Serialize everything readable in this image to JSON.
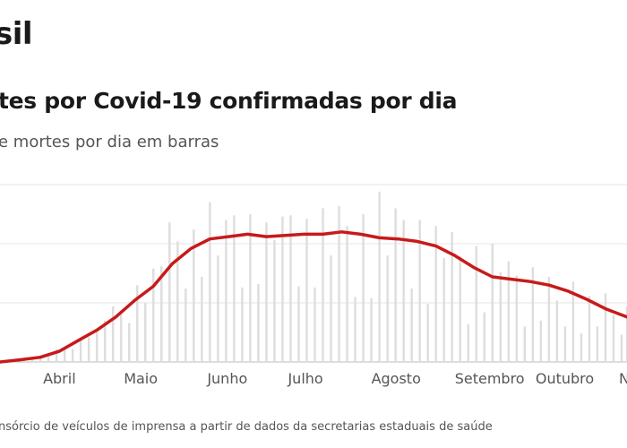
{
  "header": {
    "title": "sil",
    "subtitle": "tes por Covid-19 confirmadas por dia",
    "caption": "e mortes por dia em barras",
    "source": "nsórcio de veículos de imprensa a partir de dados da secretarias estaduais de saúde"
  },
  "chart_data": {
    "type": "bar",
    "title": "tes por Covid-19 confirmadas por dia",
    "subtitle": "e mortes por dia em barras",
    "x_range": [
      "2020-03-17",
      "2020-11-05"
    ],
    "y_range": [
      0,
      1500
    ],
    "grid": true,
    "colors": {
      "bars": "#dddddd",
      "line": "#c71a1a",
      "grid": "#e6e6e6"
    },
    "month_ticks": [
      {
        "label": "Abril",
        "date": "2020-04-01"
      },
      {
        "label": "Maio",
        "date": "2020-05-01"
      },
      {
        "label": "Junho",
        "date": "2020-06-01"
      },
      {
        "label": "Julho",
        "date": "2020-07-01"
      },
      {
        "label": "Agosto",
        "date": "2020-08-01"
      },
      {
        "label": "Setembro",
        "date": "2020-09-01"
      },
      {
        "label": "Outubro",
        "date": "2020-10-01"
      },
      {
        "label": "No",
        "date": "2020-11-01"
      }
    ],
    "series": [
      {
        "type": "line",
        "points": [
          [
            "2020-03-17",
            0
          ],
          [
            "2020-03-25",
            20
          ],
          [
            "2020-04-01",
            40
          ],
          [
            "2020-04-08",
            90
          ],
          [
            "2020-04-15",
            180
          ],
          [
            "2020-04-22",
            270
          ],
          [
            "2020-04-29",
            380
          ],
          [
            "2020-05-06",
            520
          ],
          [
            "2020-05-13",
            640
          ],
          [
            "2020-05-20",
            830
          ],
          [
            "2020-05-27",
            960
          ],
          [
            "2020-06-03",
            1040
          ],
          [
            "2020-06-10",
            1060
          ],
          [
            "2020-06-17",
            1080
          ],
          [
            "2020-06-24",
            1060
          ],
          [
            "2020-07-01",
            1070
          ],
          [
            "2020-07-08",
            1080
          ],
          [
            "2020-07-15",
            1080
          ],
          [
            "2020-07-22",
            1100
          ],
          [
            "2020-07-29",
            1080
          ],
          [
            "2020-08-05",
            1050
          ],
          [
            "2020-08-12",
            1040
          ],
          [
            "2020-08-19",
            1020
          ],
          [
            "2020-08-26",
            980
          ],
          [
            "2020-09-02",
            900
          ],
          [
            "2020-09-09",
            800
          ],
          [
            "2020-09-16",
            720
          ],
          [
            "2020-09-23",
            700
          ],
          [
            "2020-09-30",
            680
          ],
          [
            "2020-10-07",
            650
          ],
          [
            "2020-10-14",
            600
          ],
          [
            "2020-10-21",
            530
          ],
          [
            "2020-10-28",
            450
          ],
          [
            "2020-11-05",
            380
          ]
        ]
      },
      {
        "type": "bar",
        "points": [
          [
            "2020-03-17",
            1
          ],
          [
            "2020-03-20",
            5
          ],
          [
            "2020-03-23",
            10
          ],
          [
            "2020-03-26",
            20
          ],
          [
            "2020-03-29",
            25
          ],
          [
            "2020-04-01",
            45
          ],
          [
            "2020-04-04",
            70
          ],
          [
            "2020-04-07",
            110
          ],
          [
            "2020-04-10",
            130
          ],
          [
            "2020-04-13",
            110
          ],
          [
            "2020-04-16",
            190
          ],
          [
            "2020-04-19",
            210
          ],
          [
            "2020-04-22",
            280
          ],
          [
            "2020-04-25",
            350
          ],
          [
            "2020-04-28",
            470
          ],
          [
            "2020-05-01",
            400
          ],
          [
            "2020-05-04",
            330
          ],
          [
            "2020-05-07",
            650
          ],
          [
            "2020-05-10",
            500
          ],
          [
            "2020-05-13",
            790
          ],
          [
            "2020-05-16",
            810
          ],
          [
            "2020-05-19",
            1180
          ],
          [
            "2020-05-22",
            1020
          ],
          [
            "2020-05-25",
            620
          ],
          [
            "2020-05-28",
            1120
          ],
          [
            "2020-05-31",
            720
          ],
          [
            "2020-06-03",
            1350
          ],
          [
            "2020-06-06",
            900
          ],
          [
            "2020-06-09",
            1200
          ],
          [
            "2020-06-12",
            1240
          ],
          [
            "2020-06-15",
            630
          ],
          [
            "2020-06-18",
            1250
          ],
          [
            "2020-06-21",
            660
          ],
          [
            "2020-06-24",
            1180
          ],
          [
            "2020-06-27",
            1030
          ],
          [
            "2020-06-30",
            1230
          ],
          [
            "2020-07-03",
            1240
          ],
          [
            "2020-07-06",
            640
          ],
          [
            "2020-07-09",
            1210
          ],
          [
            "2020-07-12",
            630
          ],
          [
            "2020-07-15",
            1300
          ],
          [
            "2020-07-18",
            900
          ],
          [
            "2020-07-21",
            1320
          ],
          [
            "2020-07-24",
            1150
          ],
          [
            "2020-07-27",
            550
          ],
          [
            "2020-07-30",
            1250
          ],
          [
            "2020-08-02",
            540
          ],
          [
            "2020-08-05",
            1440
          ],
          [
            "2020-08-08",
            900
          ],
          [
            "2020-08-11",
            1300
          ],
          [
            "2020-08-14",
            1200
          ],
          [
            "2020-08-17",
            620
          ],
          [
            "2020-08-20",
            1200
          ],
          [
            "2020-08-23",
            490
          ],
          [
            "2020-08-26",
            1150
          ],
          [
            "2020-08-29",
            880
          ],
          [
            "2020-09-01",
            1100
          ],
          [
            "2020-09-04",
            890
          ],
          [
            "2020-09-07",
            320
          ],
          [
            "2020-09-10",
            980
          ],
          [
            "2020-09-13",
            420
          ],
          [
            "2020-09-16",
            1000
          ],
          [
            "2020-09-19",
            760
          ],
          [
            "2020-09-22",
            850
          ],
          [
            "2020-09-25",
            730
          ],
          [
            "2020-09-28",
            300
          ],
          [
            "2020-10-01",
            800
          ],
          [
            "2020-10-04",
            350
          ],
          [
            "2020-10-07",
            720
          ],
          [
            "2020-10-10",
            520
          ],
          [
            "2020-10-13",
            300
          ],
          [
            "2020-10-16",
            680
          ],
          [
            "2020-10-19",
            240
          ],
          [
            "2020-10-22",
            560
          ],
          [
            "2020-10-25",
            300
          ],
          [
            "2020-10-28",
            580
          ],
          [
            "2020-10-31",
            400
          ],
          [
            "2020-11-03",
            230
          ],
          [
            "2020-11-05",
            470
          ]
        ]
      }
    ]
  }
}
